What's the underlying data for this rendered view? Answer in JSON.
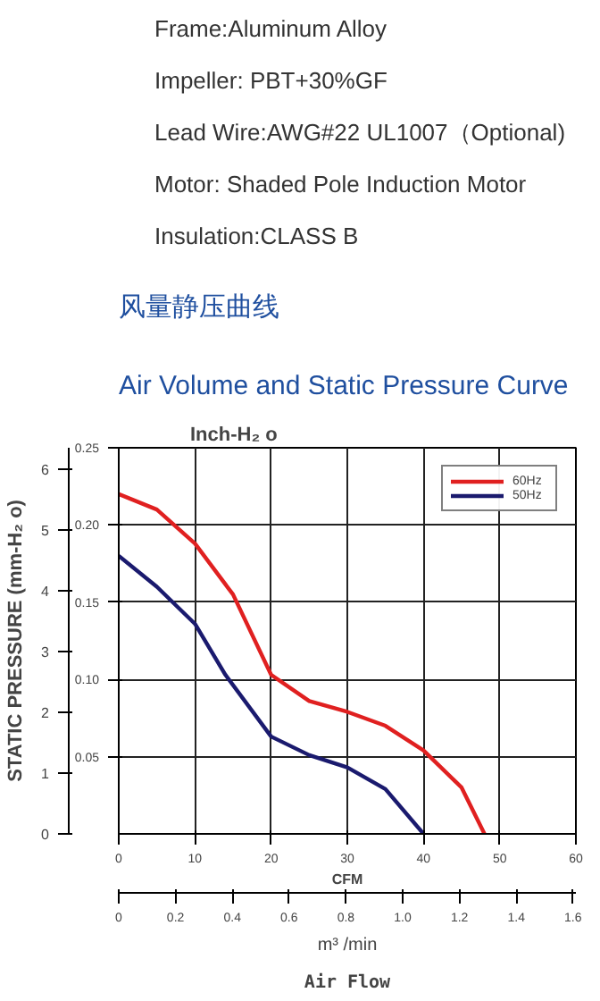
{
  "chart_data": {
    "type": "line",
    "title": "风量静压曲线",
    "subtitle": "Air Volume and Static Pressure Curve",
    "annotations": [
      "Frame:Aluminum Alloy",
      "Impeller: PBT+30%GF",
      "Lead Wire:AWG#22 UL1007（Optional)",
      "Motor: Shaded Pole Induction Motor",
      "Insulation:CLASS B",
      "Air Flow"
    ],
    "xlabel": "CFM",
    "x2label": "m³ /min",
    "ylabel": "Inch-H₂ o",
    "y2label": "STATIC PRESSURE (mm-H₂ o)",
    "xlim": [
      0,
      60
    ],
    "xticks": [
      0,
      10,
      20,
      30,
      40,
      50,
      60
    ],
    "x2lim": [
      0,
      1.61
    ],
    "x2ticks": [
      0,
      0.2,
      0.4,
      0.6,
      0.8,
      {
        "value": 1,
        "label": "1.0"
      },
      1.2,
      1.4,
      1.6
    ],
    "ylim": [
      0,
      0.25
    ],
    "yticks": [
      {
        "value": 0.05,
        "label": "0.05"
      },
      {
        "value": 0.1,
        "label": "0.10"
      },
      {
        "value": 0.15,
        "label": "0.15"
      },
      {
        "value": 0.2,
        "label": "0.20"
      },
      {
        "value": 0.25,
        "label": "0.25"
      }
    ],
    "y2lim": [
      0,
      6.35
    ],
    "y2ticks": [
      0,
      1,
      2,
      3,
      4,
      5,
      6
    ],
    "grid": true,
    "legend": "top right",
    "line_style": "solid",
    "marker": "none",
    "series": [
      {
        "name": "60Hz",
        "color": "#e02020",
        "x": [
          0,
          5,
          10,
          15,
          20,
          25,
          30,
          35,
          40,
          45,
          48
        ],
        "values": [
          0.22,
          0.21,
          0.188,
          0.155,
          0.103,
          0.086,
          0.079,
          0.07,
          0.054,
          0.03,
          0
        ]
      },
      {
        "name": "50Hz",
        "color": "#1a1a6e",
        "x": [
          0,
          5,
          10,
          14,
          20,
          25,
          30,
          35,
          40
        ],
        "values": [
          0.18,
          0.16,
          0.136,
          0.103,
          0.063,
          0.051,
          0.043,
          0.029,
          0
        ]
      }
    ]
  }
}
